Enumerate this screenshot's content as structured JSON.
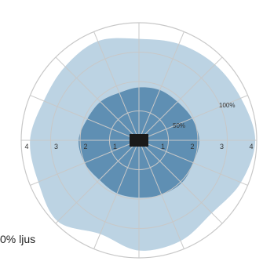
{
  "chart_data": {
    "type": "polar-area",
    "radial_ticks": [
      "4",
      "3",
      "2",
      "1",
      "1",
      "2",
      "3",
      "4"
    ],
    "percent_labels": [
      "100%",
      "50%"
    ],
    "radial_range": [
      0,
      4
    ],
    "angular_spokes": 16,
    "series": [
      {
        "name": "outer",
        "angles_deg": [
          0,
          22.5,
          45,
          67.5,
          90,
          112.5,
          135,
          157.5,
          180,
          202.5,
          225,
          247.5,
          270,
          292.5,
          315,
          337.5
        ],
        "radius": [
          3.95,
          3.75,
          3.65,
          3.55,
          3.45,
          3.65,
          3.55,
          3.5,
          3.7,
          3.7,
          3.9,
          3.45,
          3.75,
          3.7,
          3.5,
          3.75
        ]
      },
      {
        "name": "inner",
        "angles_deg": [
          0,
          22.5,
          45,
          67.5,
          90,
          112.5,
          135,
          157.5,
          180,
          202.5,
          225,
          247.5,
          270,
          292.5,
          315,
          337.5
        ],
        "radius": [
          2.05,
          1.95,
          1.85,
          1.85,
          1.8,
          1.75,
          1.85,
          1.9,
          2.05,
          2.0,
          1.9,
          1.95,
          1.95,
          2.0,
          2.05,
          2.0
        ]
      }
    ],
    "legend": "0% ljus"
  },
  "colors": {
    "outer_fill": "#bcd3e3",
    "inner_fill": "#5f8fb3",
    "grid": "#c8c8c8",
    "center": "#1a1a1a"
  }
}
